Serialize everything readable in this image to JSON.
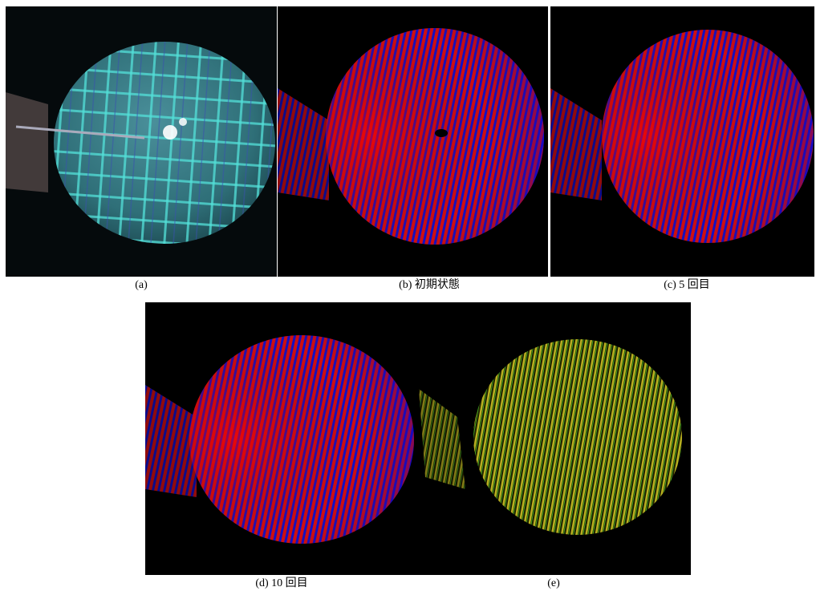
{
  "figure": {
    "panels": [
      {
        "caption": "(a)"
      },
      {
        "caption": "(b) 初期状態"
      },
      {
        "caption": "(c) 5 回目"
      },
      {
        "caption": "(d) 10 回目"
      },
      {
        "caption": "(e)"
      }
    ]
  }
}
